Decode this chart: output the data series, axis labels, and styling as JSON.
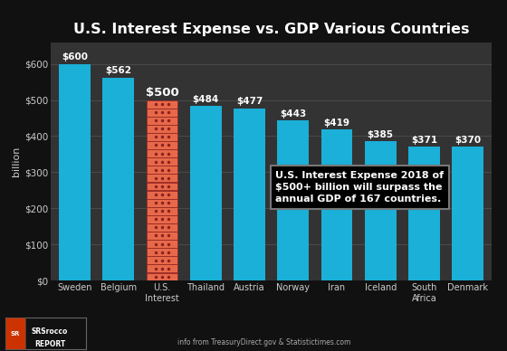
{
  "title": "U.S. Interest Expense vs. GDP Various Countries",
  "categories": [
    "Sweden",
    "Belgium",
    "U.S.\nInterest",
    "Thailand",
    "Austria",
    "Norway",
    "Iran",
    "Iceland",
    "South\nAfrica",
    "Denmark"
  ],
  "values": [
    600,
    562,
    500,
    484,
    477,
    443,
    419,
    385,
    371,
    370
  ],
  "labels": [
    "$600",
    "$562",
    "$500",
    "$484",
    "$477",
    "$443",
    "$419",
    "$385",
    "$371",
    "$370"
  ],
  "bar_colors": [
    "#1ab0d8",
    "#1ab0d8",
    "#c0392b",
    "#1ab0d8",
    "#1ab0d8",
    "#1ab0d8",
    "#1ab0d8",
    "#1ab0d8",
    "#1ab0d8",
    "#1ab0d8"
  ],
  "us_bar_hatch_color": "#e8694a",
  "background_color": "#111111",
  "plot_bg_color": "#333333",
  "ylabel": "billion",
  "ylim": [
    0,
    660
  ],
  "yticks": [
    0,
    100,
    200,
    300,
    400,
    500,
    600
  ],
  "ytick_labels": [
    "$0",
    "$100",
    "$200",
    "$300",
    "$400",
    "$500",
    "$600"
  ],
  "annotation_text": "U.S. Interest Expense 2018 of\n$500+ billion will surpass the\nannual GDP of 167 countries.",
  "annotation_box_color": "#000000",
  "annotation_text_color": "#ffffff",
  "title_color": "#ffffff",
  "tick_color": "#cccccc",
  "label_color": "#ffffff",
  "grid_color": "#555555",
  "footer_right": "info from TreasuryDirect.gov & Statistictimes.com",
  "logo_text": "SRSrocco\nREPORT",
  "logo_bg": "#111111",
  "logo_border": "#555555"
}
